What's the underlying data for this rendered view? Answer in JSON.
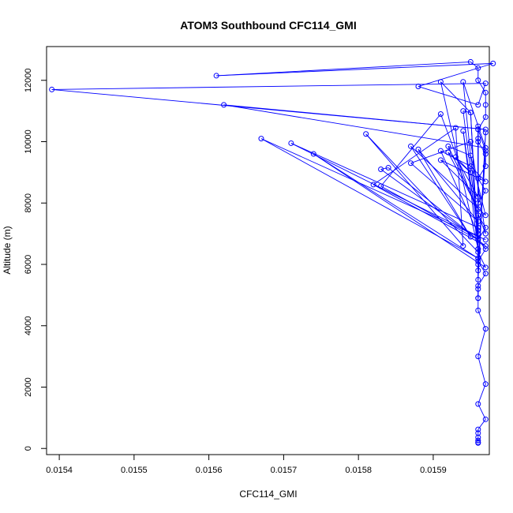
{
  "chart_data": {
    "type": "line",
    "title": "ATOM3 Southbound CFC114_GMI",
    "xlabel": "CFC114_GMI",
    "ylabel": "Altitude (m)",
    "xlim": [
      0.015383,
      0.015975
    ],
    "ylim": [
      -200,
      13100
    ],
    "x_ticks": [
      0.0154,
      0.0155,
      0.0156,
      0.0157,
      0.0158,
      0.0159
    ],
    "y_ticks": [
      0,
      2000,
      4000,
      6000,
      8000,
      10000,
      12000
    ],
    "x_tick_labels": [
      "0.0154",
      "0.0155",
      "0.0156",
      "0.0157",
      "0.0158",
      "0.0159"
    ],
    "y_tick_labels": [
      "0",
      "2000",
      "4000",
      "6000",
      "8000",
      "10000",
      "12000"
    ],
    "grid": false,
    "legend": "none",
    "series": [
      {
        "color": "#0000ff",
        "marker": "open-circle",
        "x": [
          0.01596,
          0.01596,
          0.01596,
          0.01596,
          0.01596,
          0.01596,
          0.01597,
          0.01596,
          0.01597,
          0.01596,
          0.01597,
          0.01596,
          0.01596,
          0.01596,
          0.01597,
          0.01596,
          0.01597,
          0.01596,
          0.01597,
          0.01596,
          0.01596,
          0.01597,
          0.01596,
          0.01597,
          0.01597,
          0.01596,
          0.01596,
          0.01597,
          0.01597,
          0.01597,
          0.01596,
          0.01596,
          0.01595,
          0.01561,
          0.01598,
          0.01588,
          0.01596,
          0.01597,
          0.01539,
          0.01597,
          0.01562,
          0.01597,
          0.01594,
          0.01596,
          0.01594,
          0.01595,
          0.01591,
          0.01596,
          0.01596,
          0.01571,
          0.01597,
          0.01567,
          0.01596,
          0.01574,
          0.01597,
          0.01596,
          0.01581,
          0.01594,
          0.01593,
          0.01582,
          0.01597,
          0.01584,
          0.01583,
          0.01596,
          0.01583,
          0.01591,
          0.01597,
          0.01595,
          0.01587,
          0.01596,
          0.01588,
          0.01595,
          0.01587,
          0.01597,
          0.01595,
          0.01592,
          0.01596,
          0.01592,
          0.01595,
          0.01593,
          0.01596,
          0.01591,
          0.01597,
          0.01595,
          0.01591,
          0.01596,
          0.01594,
          0.01596,
          0.01595,
          0.01596,
          0.01596,
          0.01597,
          0.01596,
          0.01596,
          0.01596,
          0.01597,
          0.01596,
          0.01596,
          0.01596,
          0.01596
        ],
        "y": [
          180,
          200,
          260,
          360,
          500,
          620,
          950,
          1450,
          2100,
          3000,
          3900,
          4500,
          4900,
          5300,
          5700,
          6100,
          6500,
          6800,
          7200,
          7600,
          8000,
          8400,
          8800,
          9200,
          9600,
          10000,
          10400,
          10800,
          11200,
          11600,
          12000,
          12400,
          12600,
          12150,
          12550,
          11800,
          11200,
          11900,
          11700,
          10400,
          11200,
          9800,
          11950,
          7100,
          11000,
          10950,
          11950,
          6500,
          7200,
          9950,
          6800,
          10100,
          6200,
          9600,
          5900,
          6400,
          10250,
          6600,
          10450,
          8600,
          6600,
          9150,
          9100,
          6800,
          8550,
          10900,
          7000,
          10000,
          9300,
          7400,
          9750,
          6900,
          9850,
          7600,
          9550,
          9850,
          7800,
          9650,
          9000,
          9500,
          8200,
          9400,
          8700,
          9200,
          9700,
          7000,
          10350,
          6500,
          10950,
          6200,
          10400,
          9700,
          6000,
          10500,
          5800,
          10300,
          5500,
          10100,
          4900,
          5200
        ]
      }
    ]
  }
}
